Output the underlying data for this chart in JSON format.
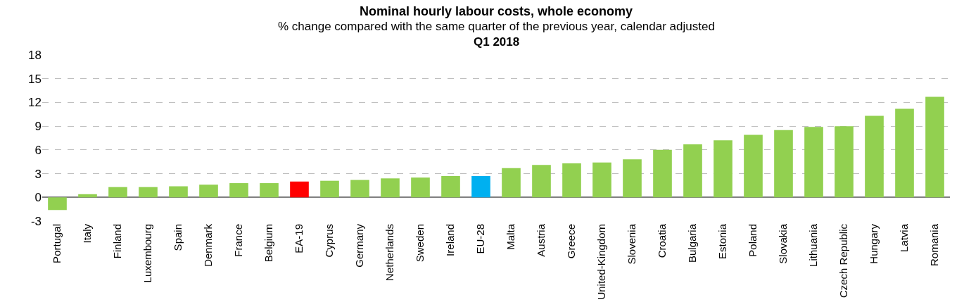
{
  "chart_data": {
    "type": "bar",
    "title": "Nominal hourly labour costs, whole economy",
    "subtitle": "% change compared with the same quarter of the previous year, calendar adjusted",
    "annotations": [
      "Q1 2018"
    ],
    "categories": [
      "Portugal",
      "Italy",
      "Finland",
      "Luxembourg",
      "Spain",
      "Denmark",
      "France",
      "Belgium",
      "EA-19",
      "Cyprus",
      "Germany",
      "Netherlands",
      "Sweden",
      "Ireland",
      "EU-28",
      "Malta",
      "Austria",
      "Greece",
      "United-Kingdom",
      "Slovenia",
      "Croatia",
      "Bulgaria",
      "Estonia",
      "Poland",
      "Slovakia",
      "Lithuania",
      "Czech Republic",
      "Hungary",
      "Latvia",
      "Romania"
    ],
    "values": [
      -1.6,
      0.4,
      1.3,
      1.3,
      1.4,
      1.6,
      1.8,
      1.8,
      2.0,
      2.1,
      2.2,
      2.4,
      2.5,
      2.7,
      2.7,
      3.7,
      4.1,
      4.3,
      4.4,
      4.8,
      6.0,
      6.7,
      7.2,
      7.9,
      8.5,
      8.9,
      9.0,
      10.3,
      11.2,
      12.7
    ],
    "colors": [
      "#92d050",
      "#92d050",
      "#92d050",
      "#92d050",
      "#92d050",
      "#92d050",
      "#92d050",
      "#92d050",
      "#ff0000",
      "#92d050",
      "#92d050",
      "#92d050",
      "#92d050",
      "#92d050",
      "#00b0f0",
      "#92d050",
      "#92d050",
      "#92d050",
      "#92d050",
      "#92d050",
      "#92d050",
      "#92d050",
      "#92d050",
      "#92d050",
      "#92d050",
      "#92d050",
      "#92d050",
      "#92d050",
      "#92d050",
      "#92d050"
    ],
    "ylim": [
      -3,
      18
    ],
    "yticks": [
      -3,
      0,
      3,
      6,
      9,
      12,
      15,
      18
    ],
    "grid": "y"
  }
}
